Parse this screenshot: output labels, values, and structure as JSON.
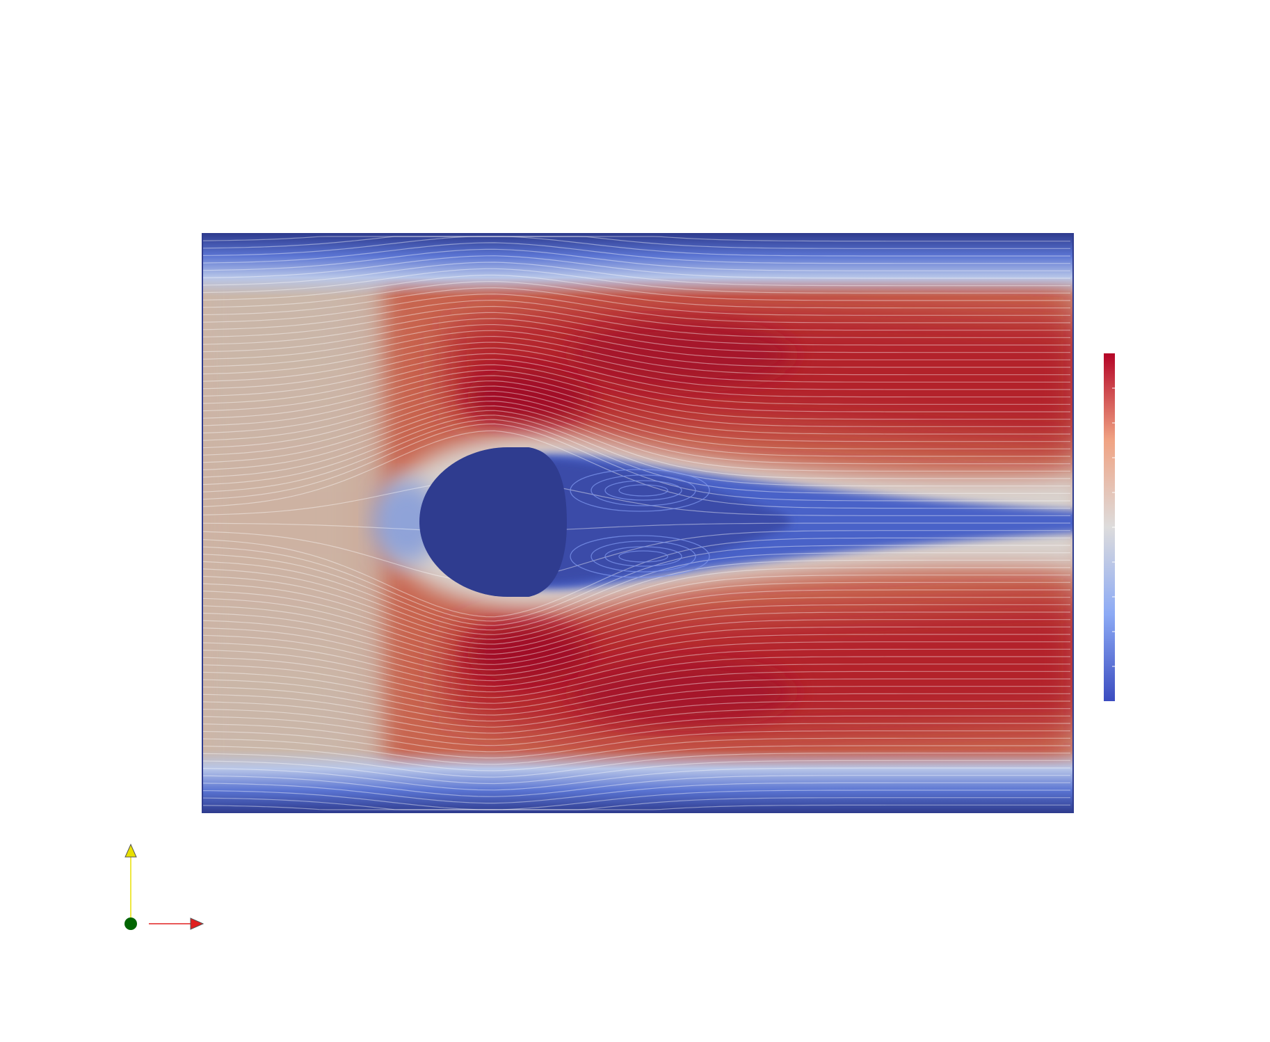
{
  "view": {
    "render": "velocity-magnitude-streamlines",
    "obstacle": "circular-cylinder",
    "colormap": "cool-to-warm",
    "colors": {
      "low": "#2f3c8f",
      "mid_low": "#8fa9ee",
      "neutral": "#dcd9d6",
      "mid_high": "#e08a6c",
      "high": "#a10d25",
      "streamline": "#ffffff"
    }
  },
  "colorbar": {
    "orientation": "vertical",
    "tick_count": 9,
    "labels_visible": false
  },
  "orientation_axes": {
    "x_axis_color": "#e02020",
    "y_axis_color": "#e8e000",
    "origin_color": "#006400",
    "icons": [
      "x-axis-arrow-icon",
      "y-axis-arrow-icon",
      "origin-sphere-icon"
    ]
  }
}
